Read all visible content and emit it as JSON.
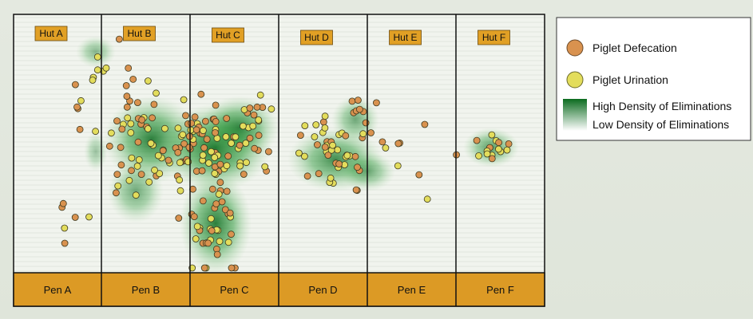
{
  "huts": [
    "Hut A",
    "Hut B",
    "Hut C",
    "Hut D",
    "Hut E",
    "Hut F"
  ],
  "pens": [
    "Pen A",
    "Pen B",
    "Pen C",
    "Pen D",
    "Pen E",
    "Pen F"
  ],
  "legend": {
    "defecation": "Piglet Defecation",
    "urination": "Piglet Urination",
    "high_density": "High Density of Eliminations",
    "low_density": "Low Density of Eliminations"
  }
}
